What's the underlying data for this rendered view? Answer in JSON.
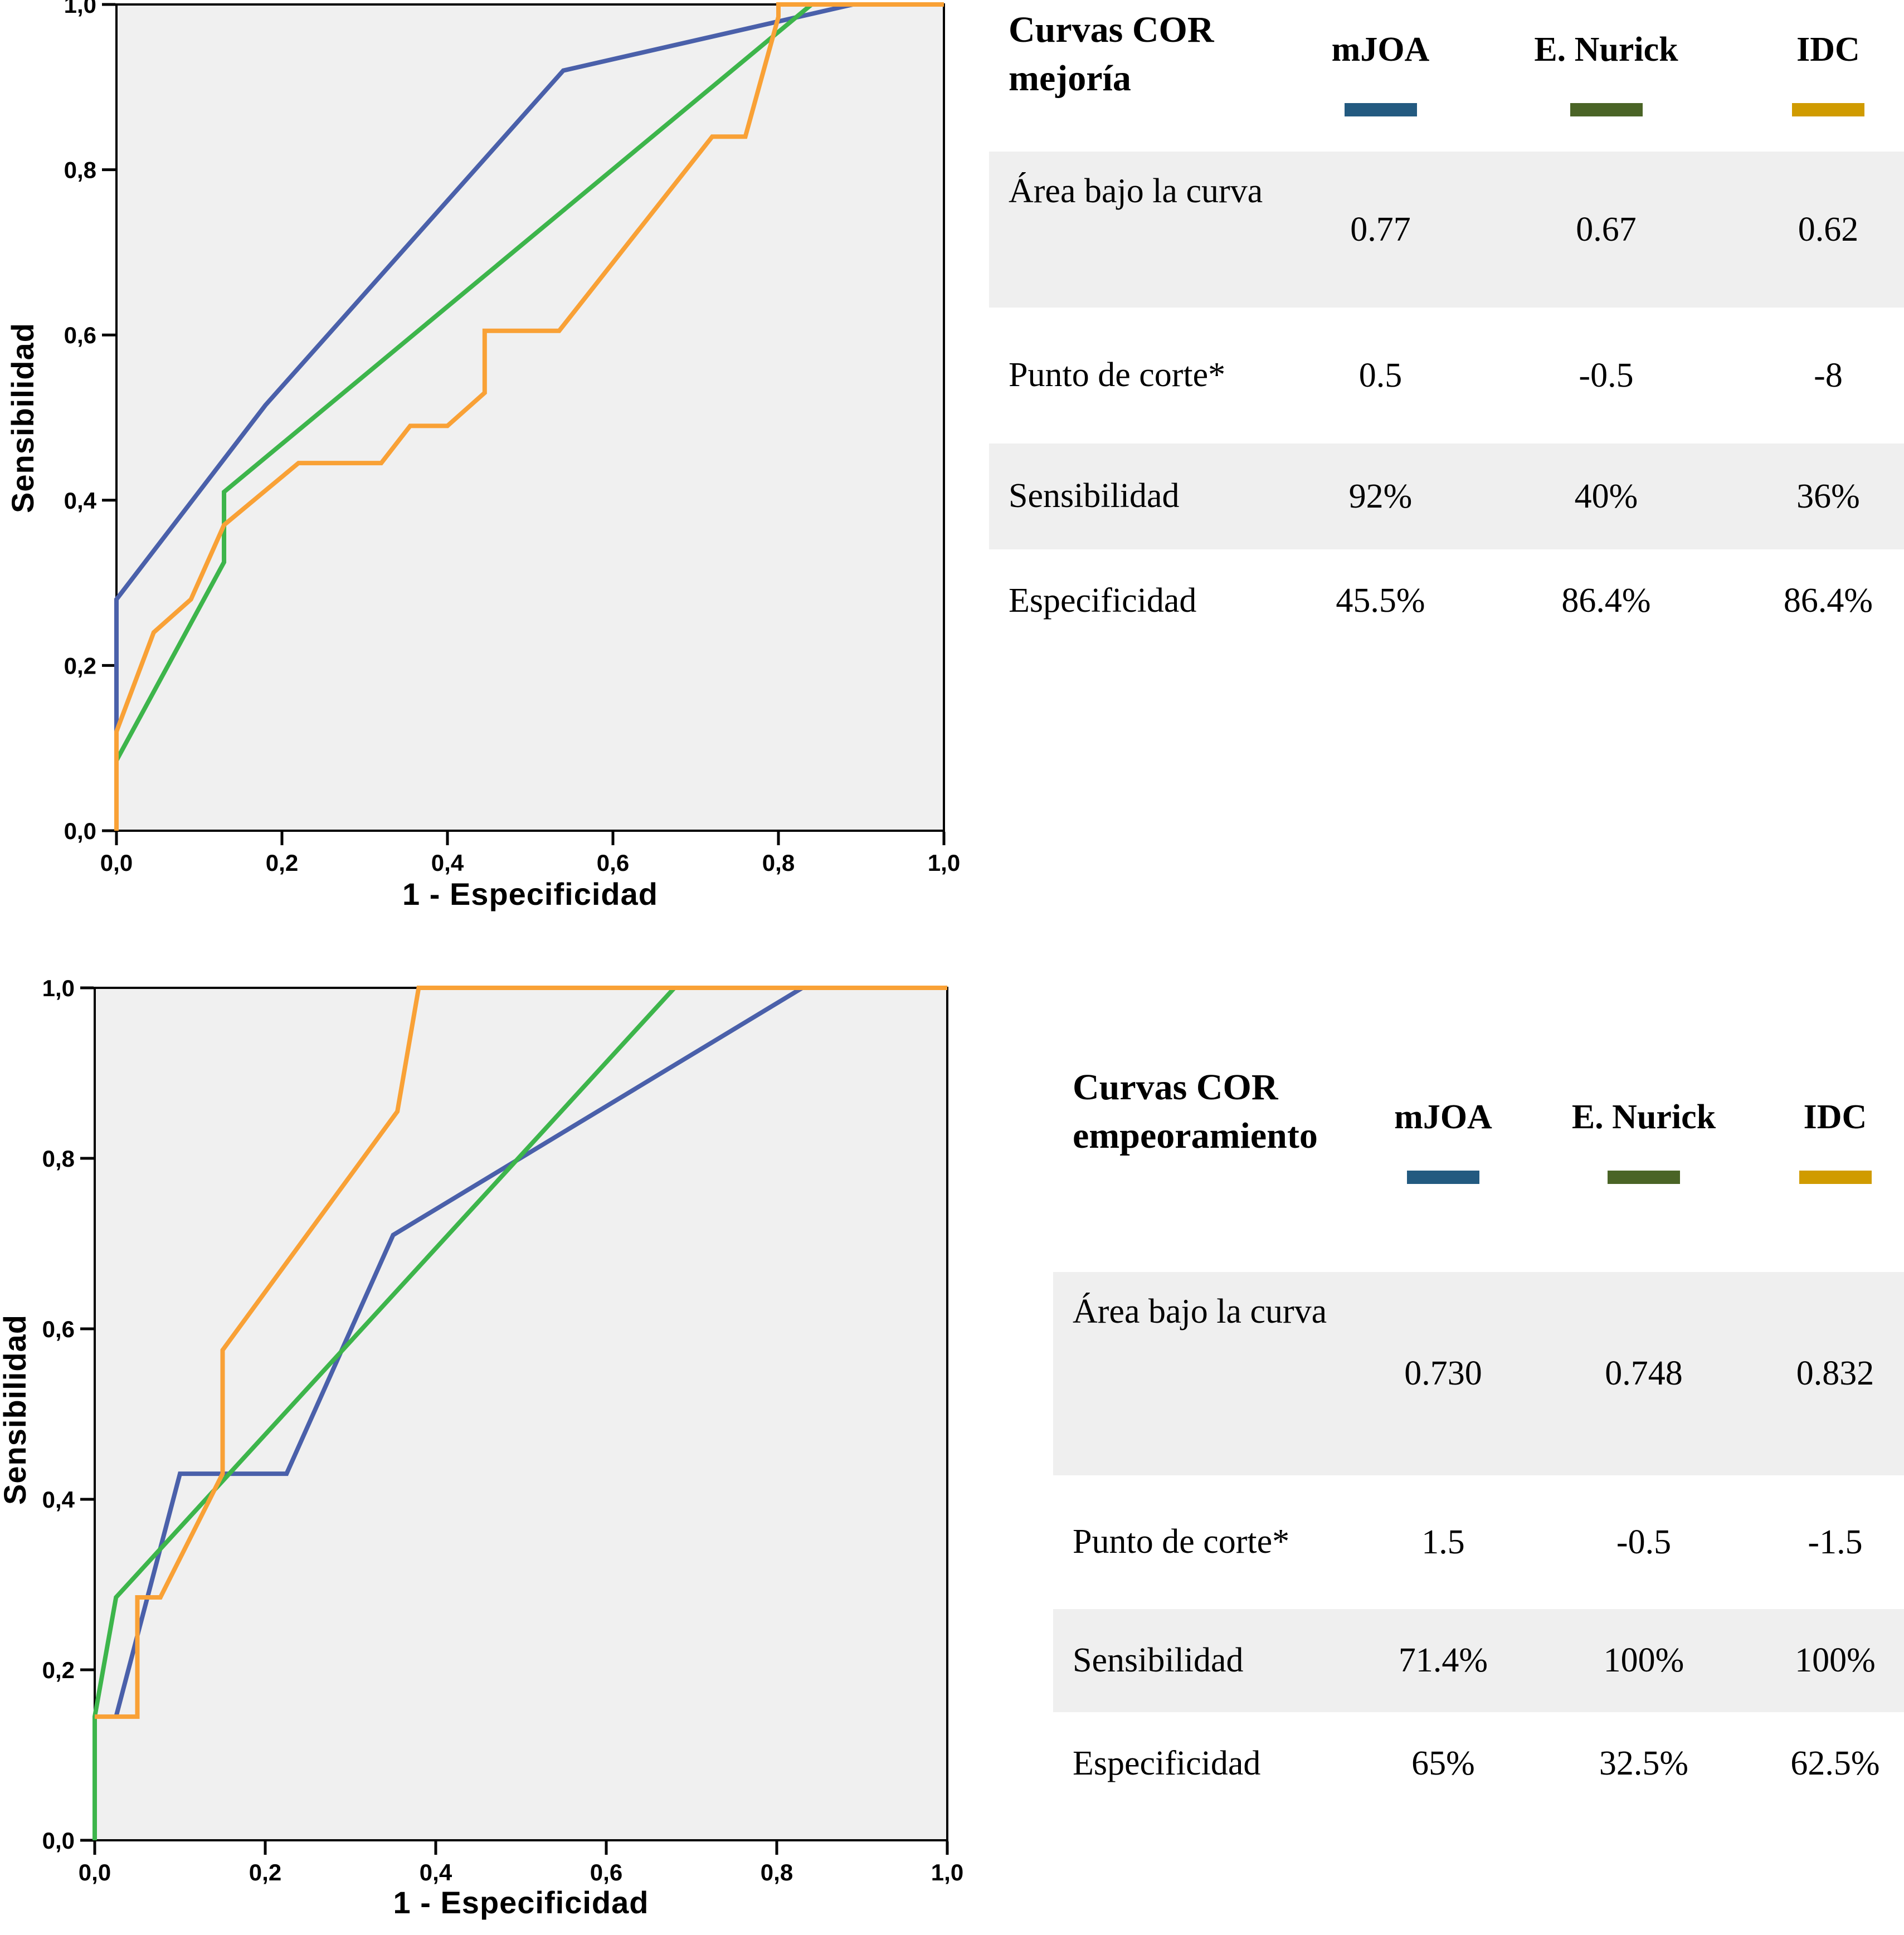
{
  "chart_data": [
    {
      "type": "line",
      "name": "roc-mejoria",
      "title": "Curvas COR mejoría",
      "xlabel": "1 - Especificidad",
      "ylabel": "Sensibilidad",
      "xlim": [
        0,
        1
      ],
      "ylim": [
        0,
        1
      ],
      "grid": false,
      "x_tick_labels": [
        "0,0",
        "0,2",
        "0,4",
        "0,6",
        "0,8",
        "1,0"
      ],
      "y_tick_labels": [
        "0,0",
        "0,2",
        "0,4",
        "0,6",
        "0,8",
        "1,0"
      ],
      "plot_background": "#f0f0f0",
      "frame_color": "#000000",
      "series": [
        {
          "name": "mJOA",
          "color": "#4a60aa",
          "points": [
            [
              0,
              0
            ],
            [
              0,
              0.28
            ],
            [
              0.18,
              0.515
            ],
            [
              0.54,
              0.92
            ],
            [
              0.89,
              1
            ],
            [
              1,
              1
            ]
          ]
        },
        {
          "name": "E. Nurick",
          "color": "#3db54b",
          "points": [
            [
              0,
              0
            ],
            [
              0,
              0.085
            ],
            [
              0.13,
              0.325
            ],
            [
              0.13,
              0.41
            ],
            [
              0.84,
              1
            ],
            [
              1,
              1
            ]
          ]
        },
        {
          "name": "IDC",
          "color": "#f9a136",
          "points": [
            [
              0,
              0
            ],
            [
              0,
              0.12
            ],
            [
              0.045,
              0.24
            ],
            [
              0.09,
              0.28
            ],
            [
              0.13,
              0.37
            ],
            [
              0.22,
              0.445
            ],
            [
              0.32,
              0.445
            ],
            [
              0.355,
              0.49
            ],
            [
              0.4,
              0.49
            ],
            [
              0.445,
              0.53
            ],
            [
              0.445,
              0.605
            ],
            [
              0.535,
              0.605
            ],
            [
              0.72,
              0.84
            ],
            [
              0.76,
              0.84
            ],
            [
              0.8,
              0.985
            ],
            [
              0.8,
              1
            ],
            [
              1,
              1
            ]
          ]
        }
      ]
    },
    {
      "type": "line",
      "name": "roc-empeoramiento",
      "title": "Curvas COR empeoramiento",
      "xlabel": "1 - Especificidad",
      "ylabel": "Sensibilidad",
      "xlim": [
        0,
        1
      ],
      "ylim": [
        0,
        1
      ],
      "grid": false,
      "x_tick_labels": [
        "0,0",
        "0,2",
        "0,4",
        "0,6",
        "0,8",
        "1,0"
      ],
      "y_tick_labels": [
        "0,0",
        "0,2",
        "0,4",
        "0,6",
        "0,8",
        "1,0"
      ],
      "plot_background": "#f0f0f0",
      "frame_color": "#000000",
      "series": [
        {
          "name": "mJOA",
          "color": "#4a60aa",
          "points": [
            [
              0.025,
              0.145
            ],
            [
              0.1,
              0.43
            ],
            [
              0.225,
              0.43
            ],
            [
              0.35,
              0.71
            ],
            [
              0.83,
              1
            ],
            [
              1,
              1
            ]
          ]
        },
        {
          "name": "E. Nurick",
          "color": "#3db54b",
          "points": [
            [
              0,
              0
            ],
            [
              0,
              0.145
            ],
            [
              0.025,
              0.285
            ],
            [
              0.68,
              1
            ],
            [
              1,
              1
            ]
          ]
        },
        {
          "name": "IDC",
          "color": "#f9a136",
          "points": [
            [
              0,
              0.145
            ],
            [
              0.05,
              0.145
            ],
            [
              0.05,
              0.285
            ],
            [
              0.077,
              0.285
            ],
            [
              0.15,
              0.43
            ],
            [
              0.15,
              0.575
            ],
            [
              0.355,
              0.855
            ],
            [
              0.38,
              1
            ],
            [
              1,
              1
            ]
          ]
        }
      ]
    }
  ],
  "tables": [
    {
      "title": "Curvas COR mejoría",
      "columns": [
        {
          "label": "mJOA",
          "swatch_color": "#235a80"
        },
        {
          "label": "E. Nurick",
          "swatch_color": "#4a6426"
        },
        {
          "label": "IDC",
          "swatch_color": "#d09b00"
        }
      ],
      "rows": [
        {
          "label": "Área bajo la curva",
          "values": [
            "0.77",
            "0.67",
            "0.62"
          ],
          "shaded": true
        },
        {
          "label": "Punto de corte*",
          "values": [
            "0.5",
            "-0.5",
            "-8"
          ],
          "shaded": false
        },
        {
          "label": "Sensibilidad",
          "values": [
            "92%",
            "40%",
            "36%"
          ],
          "shaded": true
        },
        {
          "label": "Especificidad",
          "values": [
            "45.5%",
            "86.4%",
            "86.4%"
          ],
          "shaded": false
        }
      ]
    },
    {
      "title": "Curvas COR empeoramiento",
      "columns": [
        {
          "label": "mJOA",
          "swatch_color": "#235a80"
        },
        {
          "label": "E. Nurick",
          "swatch_color": "#4a6426"
        },
        {
          "label": "IDC",
          "swatch_color": "#d09b00"
        }
      ],
      "rows": [
        {
          "label": "Área bajo la curva",
          "values": [
            "0.730",
            "0.748",
            "0.832"
          ],
          "shaded": true
        },
        {
          "label": "Punto de corte*",
          "values": [
            "1.5",
            "-0.5",
            "-1.5"
          ],
          "shaded": false
        },
        {
          "label": "Sensibilidad",
          "values": [
            "71.4%",
            "100%",
            "100%"
          ],
          "shaded": true
        },
        {
          "label": "Especificidad",
          "values": [
            "65%",
            "32.5%",
            "62.5%"
          ],
          "shaded": false
        }
      ]
    }
  ]
}
